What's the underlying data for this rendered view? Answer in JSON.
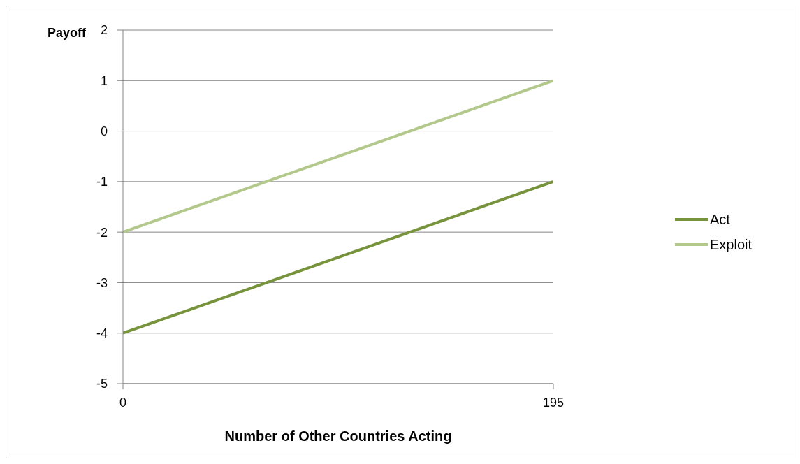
{
  "chart_data": {
    "type": "line",
    "xlabel": "Number of Other Countries Acting",
    "ylabel": "Payoff",
    "x": [
      0,
      195
    ],
    "series": [
      {
        "name": "Act",
        "color": "#77933c",
        "values": [
          -4,
          -1
        ]
      },
      {
        "name": "Exploit",
        "color": "#b3c98c",
        "values": [
          -2,
          1
        ]
      }
    ],
    "xlim": [
      0,
      195
    ],
    "xticks": [
      0,
      195
    ],
    "ylim": [
      -5,
      2
    ],
    "yticks": [
      -5,
      -4,
      -3,
      -2,
      -1,
      0,
      1,
      2
    ],
    "grid": "y",
    "legend": "right",
    "marker": "none",
    "line_style": "solid"
  }
}
